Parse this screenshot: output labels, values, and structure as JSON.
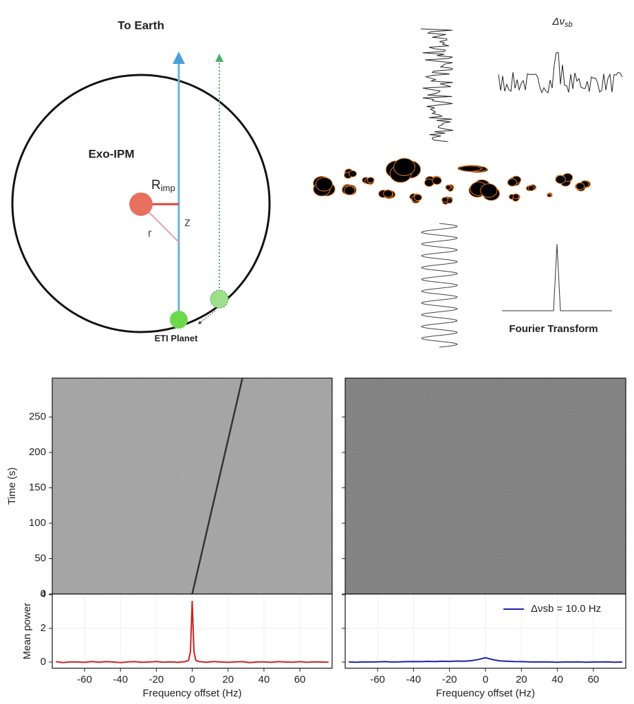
{
  "diagram": {
    "title": "To Earth",
    "region": "Exo-IPM",
    "radius_label": "R",
    "radius_sub": "imp",
    "z_label": "z",
    "r_label": "r",
    "planet": "ETI Planet",
    "bandwidth": "Δν",
    "bandwidth_sub": "sb",
    "transform": "Fourier Transform"
  },
  "chart_data": [
    {
      "type": "waterfall",
      "ylabel": "Time (s)",
      "background": "#a3a3a3",
      "xlim": [
        -78,
        78
      ],
      "ylim": [
        0,
        305
      ],
      "yticks": [
        0,
        50,
        100,
        150,
        200,
        250
      ],
      "series": [
        {
          "color": "#333333",
          "x": [
            0,
            28
          ],
          "values": [
            0,
            305
          ]
        }
      ]
    },
    {
      "type": "line",
      "ylabel": "Mean power",
      "xlabel": "Frequency offset (Hz)",
      "grid": true,
      "xlim": [
        -78,
        78
      ],
      "ylim": [
        -0.37,
        4.04
      ],
      "yticks": [
        0,
        2,
        4
      ],
      "xticks": [
        -60,
        -40,
        -20,
        0,
        20,
        40,
        60
      ],
      "x": [
        -76,
        -72,
        -68,
        -64,
        -60,
        -56,
        -52,
        -48,
        -44,
        -40,
        -36,
        -32,
        -28,
        -24,
        -20,
        -16,
        -12,
        -8,
        -4,
        -2,
        -1,
        0,
        1,
        2,
        4,
        8,
        12,
        16,
        20,
        24,
        28,
        32,
        36,
        40,
        44,
        48,
        52,
        56,
        60,
        64,
        68,
        72,
        76
      ],
      "series": [
        {
          "color": "#cc2222",
          "values": [
            0.02,
            -0.03,
            0.01,
            0.0,
            -0.02,
            0.03,
            -0.01,
            0.02,
            0.0,
            -0.03,
            0.01,
            0.02,
            -0.02,
            0.0,
            0.03,
            -0.01,
            0.01,
            -0.02,
            0.02,
            0.1,
            0.6,
            3.63,
            0.6,
            0.1,
            0.02,
            -0.01,
            0.03,
            0.0,
            -0.02,
            0.01,
            0.02,
            -0.03,
            0.0,
            0.01,
            -0.02,
            0.02,
            0.0,
            -0.01,
            0.02,
            -0.02,
            0.01,
            0.0,
            -0.01
          ]
        }
      ]
    },
    {
      "type": "waterfall",
      "background": "#7d7d7d",
      "xlim": [
        -78,
        78
      ],
      "ylim": [
        0,
        305
      ],
      "yticks": [
        0,
        50,
        100,
        150,
        200,
        250
      ],
      "tick_labels": false,
      "series": []
    },
    {
      "type": "line",
      "xlabel": "Frequency offset (Hz)",
      "grid": true,
      "legend": "upper right",
      "tick_labels_y": false,
      "xlim": [
        -78,
        78
      ],
      "ylim": [
        -0.37,
        4.04
      ],
      "yticks": [
        0,
        2,
        4
      ],
      "xticks": [
        -60,
        -40,
        -20,
        0,
        20,
        40,
        60
      ],
      "x": [
        -76,
        -72,
        -68,
        -64,
        -60,
        -56,
        -52,
        -48,
        -44,
        -40,
        -36,
        -32,
        -28,
        -24,
        -20,
        -16,
        -12,
        -8,
        -4,
        -2,
        -1,
        0,
        1,
        2,
        4,
        8,
        12,
        16,
        20,
        24,
        28,
        32,
        36,
        40,
        44,
        48,
        52,
        56,
        60,
        64,
        68,
        72,
        76
      ],
      "series": [
        {
          "name": "Δνsb = 10.0 Hz",
          "color": "#2222aa",
          "values": [
            0.0,
            -0.01,
            0.01,
            0.0,
            0.01,
            0.02,
            0.0,
            0.01,
            0.02,
            0.03,
            0.02,
            0.04,
            0.03,
            0.05,
            0.04,
            0.06,
            0.05,
            0.08,
            0.15,
            0.2,
            0.23,
            0.25,
            0.23,
            0.2,
            0.14,
            0.07,
            0.05,
            0.03,
            0.02,
            0.01,
            0.0,
            0.01,
            0.0,
            -0.01,
            0.0,
            0.0,
            0.01,
            -0.01,
            0.0,
            0.0,
            0.01,
            -0.01,
            0.0
          ]
        }
      ]
    }
  ]
}
